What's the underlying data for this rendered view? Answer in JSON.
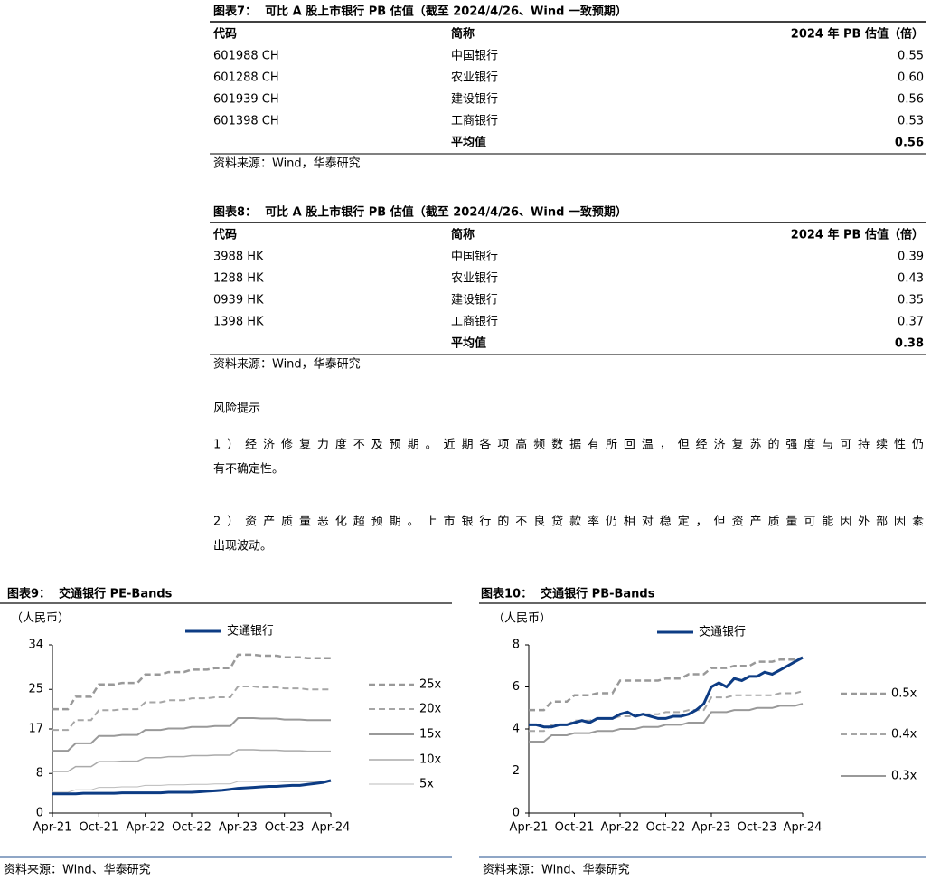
{
  "tables": [
    {
      "title": "图表7：  可比 A 股上市银行 PB 估值（截至 2024/4/26、Wind 一致预期）",
      "columns": [
        "代码",
        "简称",
        "2024 年 PB 估值（倍）"
      ],
      "rows": [
        [
          "601988 CH",
          "中国银行",
          "0.55"
        ],
        [
          "601288 CH",
          "农业银行",
          "0.60"
        ],
        [
          "601939 CH",
          "建设银行",
          "0.56"
        ],
        [
          "601398 CH",
          "工商银行",
          "0.53"
        ]
      ],
      "summary": {
        "label": "平均值",
        "value": "0.56"
      },
      "source": "资料来源：Wind，华泰研究"
    },
    {
      "title": "图表8：  可比 A 股上市银行 PB 估值（截至 2024/4/26、Wind 一致预期）",
      "columns": [
        "代码",
        "简称",
        "2024 年 PB 估值（倍）"
      ],
      "rows": [
        [
          "3988 HK",
          "中国银行",
          "0.39"
        ],
        [
          "1288 HK",
          "农业银行",
          "0.43"
        ],
        [
          "0939 HK",
          "建设银行",
          "0.35"
        ],
        [
          "1398 HK",
          "工商银行",
          "0.37"
        ]
      ],
      "summary": {
        "label": "平均值",
        "value": "0.38"
      },
      "source": "资料来源：Wind，华泰研究"
    }
  ],
  "section": {
    "heading": "风险提示",
    "paragraphs": [
      [
        "1）经济修复力度不及预期。近期各项高频数据有所回温，但经济复苏的强度与可持续性仍",
        "有不确定性。"
      ],
      [
        "2）资产质量恶化超预期。上市银行的不良贷款率仍相对稳定，但资产质量可能因外部因素",
        "出现波动。"
      ]
    ]
  },
  "chart_data": [
    {
      "type": "line",
      "title": "图表9：  交通银行 PE-Bands",
      "y_label": "（人民币）",
      "categories": [
        "Apr-21",
        null,
        null,
        null,
        null,
        null,
        "Oct-21",
        null,
        null,
        null,
        null,
        null,
        "Apr-22",
        null,
        null,
        null,
        null,
        null,
        "Oct-22",
        null,
        null,
        null,
        null,
        null,
        "Apr-23",
        null,
        null,
        null,
        null,
        null,
        "Oct-23",
        null,
        null,
        null,
        null,
        null,
        "Apr-24"
      ],
      "ylim": [
        0,
        34
      ],
      "yticks": [
        0,
        8,
        17,
        25,
        34
      ],
      "series": [
        {
          "name": "交通银行",
          "color": "#0d3c84",
          "line_style": "solid",
          "line_width": 3,
          "values": [
            3.9,
            3.9,
            3.9,
            3.9,
            4.0,
            4.0,
            4.0,
            4.0,
            4.0,
            4.1,
            4.1,
            4.1,
            4.1,
            4.1,
            4.1,
            4.2,
            4.2,
            4.2,
            4.2,
            4.3,
            4.4,
            4.5,
            4.6,
            4.8,
            5.0,
            5.1,
            5.2,
            5.3,
            5.4,
            5.4,
            5.5,
            5.6,
            5.6,
            5.8,
            6.0,
            6.2,
            6.6
          ]
        },
        {
          "name": "25x",
          "color": "#999999",
          "line_style": "dashed",
          "line_width": 2.5,
          "values": [
            21,
            21,
            21,
            23.5,
            23.5,
            23.5,
            26,
            26,
            26,
            26.3,
            26.3,
            26.3,
            28,
            28,
            28,
            28.5,
            28.5,
            28.5,
            29,
            29,
            29,
            29.3,
            29.3,
            29.3,
            32,
            32,
            32,
            31.8,
            31.8,
            31.8,
            31.5,
            31.5,
            31.5,
            31.3,
            31.3,
            31.3,
            31.3
          ]
        },
        {
          "name": "20x",
          "color": "#a6a6a6",
          "line_style": "dashed",
          "line_width": 2,
          "values": [
            16.8,
            16.8,
            16.8,
            18.8,
            18.8,
            18.8,
            20.8,
            20.8,
            20.8,
            21,
            21,
            21,
            22.4,
            22.4,
            22.4,
            22.8,
            22.8,
            22.8,
            23.2,
            23.2,
            23.2,
            23.4,
            23.4,
            23.4,
            25.6,
            25.6,
            25.6,
            25.4,
            25.4,
            25.4,
            25.2,
            25.2,
            25.2,
            25,
            25,
            25,
            25
          ]
        },
        {
          "name": "15x",
          "color": "#999999",
          "line_style": "solid",
          "line_width": 2,
          "values": [
            12.6,
            12.6,
            12.6,
            14.1,
            14.1,
            14.1,
            15.6,
            15.6,
            15.6,
            15.8,
            15.8,
            15.8,
            16.8,
            16.8,
            16.8,
            17.1,
            17.1,
            17.1,
            17.4,
            17.4,
            17.4,
            17.6,
            17.6,
            17.6,
            19.2,
            19.2,
            19.2,
            19.1,
            19.1,
            19.1,
            18.9,
            18.9,
            18.9,
            18.8,
            18.8,
            18.8,
            18.8
          ]
        },
        {
          "name": "10x",
          "color": "#aaaaaa",
          "line_style": "solid",
          "line_width": 1.5,
          "values": [
            8.4,
            8.4,
            8.4,
            9.4,
            9.4,
            9.4,
            10.4,
            10.4,
            10.4,
            10.5,
            10.5,
            10.5,
            11.2,
            11.2,
            11.2,
            11.4,
            11.4,
            11.4,
            11.6,
            11.6,
            11.6,
            11.7,
            11.7,
            11.7,
            12.8,
            12.8,
            12.8,
            12.7,
            12.7,
            12.7,
            12.6,
            12.6,
            12.6,
            12.5,
            12.5,
            12.5,
            12.5
          ]
        },
        {
          "name": "5x",
          "color": "#bbbbbb",
          "line_style": "solid",
          "line_width": 1,
          "values": [
            4.2,
            4.2,
            4.2,
            4.7,
            4.7,
            4.7,
            5.2,
            5.2,
            5.2,
            5.3,
            5.3,
            5.3,
            5.6,
            5.6,
            5.6,
            5.7,
            5.7,
            5.7,
            5.8,
            5.8,
            5.8,
            5.9,
            5.9,
            5.9,
            6.4,
            6.4,
            6.4,
            6.4,
            6.4,
            6.4,
            6.3,
            6.3,
            6.3,
            6.3,
            6.3,
            6.3,
            6.3
          ]
        }
      ],
      "source": "资料来源：Wind、华泰研究"
    },
    {
      "type": "line",
      "title": "图表10：  交通银行 PB-Bands",
      "y_label": "（人民币）",
      "categories": [
        "Apr-21",
        null,
        null,
        null,
        null,
        null,
        "Oct-21",
        null,
        null,
        null,
        null,
        null,
        "Apr-22",
        null,
        null,
        null,
        null,
        null,
        "Oct-22",
        null,
        null,
        null,
        null,
        null,
        "Apr-23",
        null,
        null,
        null,
        null,
        null,
        "Oct-23",
        null,
        null,
        null,
        null,
        null,
        "Apr-24"
      ],
      "ylim": [
        0,
        8
      ],
      "yticks": [
        0,
        2,
        4,
        6,
        8
      ],
      "series": [
        {
          "name": "交通银行",
          "color": "#0d3c84",
          "line_style": "solid",
          "line_width": 3,
          "values": [
            4.2,
            4.2,
            4.1,
            4.1,
            4.2,
            4.2,
            4.3,
            4.4,
            4.3,
            4.5,
            4.5,
            4.5,
            4.7,
            4.8,
            4.6,
            4.7,
            4.6,
            4.5,
            4.5,
            4.6,
            4.6,
            4.7,
            4.9,
            5.2,
            6.0,
            6.2,
            6.0,
            6.4,
            6.3,
            6.5,
            6.5,
            6.7,
            6.6,
            6.8,
            7.0,
            7.2,
            7.4
          ]
        },
        {
          "name": "0.5x",
          "color": "#999999",
          "line_style": "dashed",
          "line_width": 2.5,
          "values": [
            4.9,
            4.9,
            4.9,
            5.3,
            5.3,
            5.3,
            5.6,
            5.6,
            5.6,
            5.7,
            5.7,
            5.7,
            6.3,
            6.3,
            6.3,
            6.3,
            6.3,
            6.3,
            6.4,
            6.4,
            6.4,
            6.6,
            6.6,
            6.6,
            6.9,
            6.9,
            6.9,
            7.0,
            7.0,
            7.0,
            7.2,
            7.2,
            7.2,
            7.3,
            7.3,
            7.3,
            7.4
          ]
        },
        {
          "name": "0.4x",
          "color": "#a6a6a6",
          "line_style": "dashed",
          "line_width": 2,
          "values": [
            3.9,
            3.9,
            3.9,
            4.2,
            4.2,
            4.2,
            4.4,
            4.4,
            4.4,
            4.5,
            4.5,
            4.5,
            4.6,
            4.6,
            4.6,
            4.7,
            4.7,
            4.7,
            4.8,
            4.8,
            4.8,
            4.9,
            4.9,
            4.9,
            5.5,
            5.5,
            5.5,
            5.6,
            5.6,
            5.6,
            5.6,
            5.6,
            5.6,
            5.7,
            5.7,
            5.7,
            5.8
          ]
        },
        {
          "name": "0.3x",
          "color": "#999999",
          "line_style": "solid",
          "line_width": 2,
          "values": [
            3.4,
            3.4,
            3.4,
            3.7,
            3.7,
            3.7,
            3.8,
            3.8,
            3.8,
            3.9,
            3.9,
            3.9,
            4.0,
            4.0,
            4.0,
            4.1,
            4.1,
            4.1,
            4.2,
            4.2,
            4.2,
            4.3,
            4.3,
            4.3,
            4.8,
            4.8,
            4.8,
            4.9,
            4.9,
            4.9,
            5.0,
            5.0,
            5.0,
            5.1,
            5.1,
            5.1,
            5.2
          ]
        }
      ],
      "source": "资料来源：Wind、华泰研究"
    }
  ]
}
